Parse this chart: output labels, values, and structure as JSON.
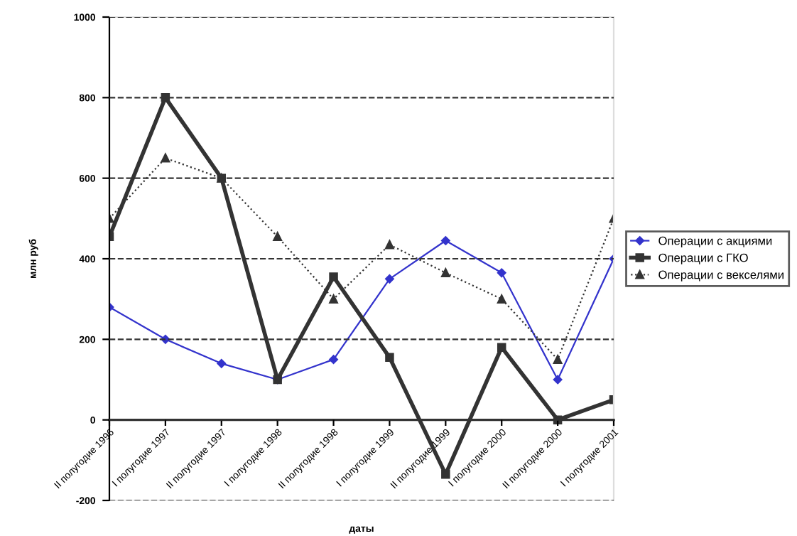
{
  "chart_data": {
    "type": "line",
    "xlabel": "даты",
    "ylabel": "млн руб",
    "categories": [
      "II полугодие 1996",
      "I полугодие 1997",
      "II полугодие 1997",
      "I полугодие 1998",
      "II полугодие 1998",
      "I полугодие 1999",
      "II полугодие 1999",
      "I полугодие 2000",
      "II полугодие 2000",
      "I полугодие 2001"
    ],
    "series": [
      {
        "name": "Операции с акциями",
        "color": "#3333cc",
        "marker": "diamond",
        "line_style": "solid",
        "values": [
          280,
          200,
          140,
          100,
          150,
          350,
          445,
          365,
          100,
          400
        ]
      },
      {
        "name": "Операции с ГКО",
        "color": "#333333",
        "marker": "square",
        "line_style": "solid",
        "values": [
          455,
          800,
          600,
          100,
          355,
          155,
          -135,
          180,
          0,
          50
        ]
      },
      {
        "name": "Операции с векселями",
        "color": "#333333",
        "marker": "triangle",
        "line_style": "dotted",
        "values": [
          500,
          650,
          600,
          455,
          300,
          435,
          365,
          300,
          150,
          500
        ]
      }
    ],
    "ylim": [
      -200,
      1000
    ],
    "yticks": [
      -200,
      0,
      200,
      400,
      600,
      800,
      1000
    ],
    "grid": "y",
    "legend": "right"
  }
}
